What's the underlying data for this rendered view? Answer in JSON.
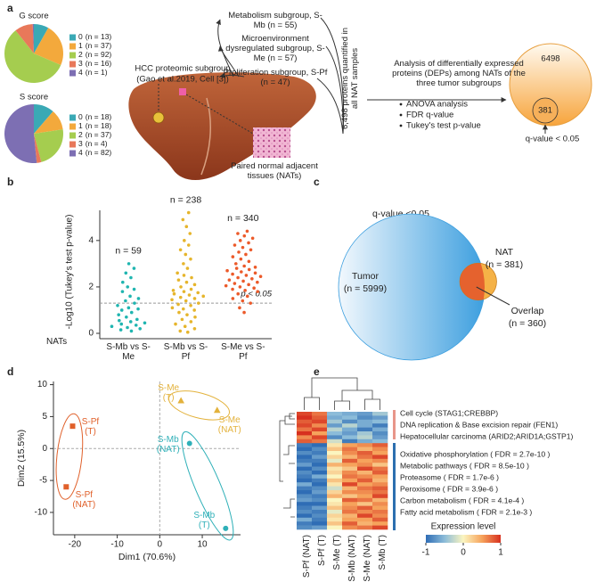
{
  "panel_labels": [
    "a",
    "b",
    "c",
    "d",
    "e"
  ],
  "diagram": {
    "source_title": "HCC proteomic subgroup",
    "source_ref": "(Gao et al.2019, Cell [3])",
    "subgroups": [
      "Metabolism subgroup, S-Mb (n = 55)",
      "Microenvironment dysregulated subgroup, S-Me (n = 57)",
      "Proliferation subgroup, S-Pf (n = 47)"
    ],
    "nat_label": "Paired normal adjacent tissues (NATs)",
    "quantified": "6,498 proteins quantified in all NAT samples",
    "analysis": "Analysis of differentially expressed proteins (DEPs) among NATs of the three tumor subgroups",
    "methods": [
      "ANOVA analysis",
      "FDR q-value",
      "Tukey's test p-value"
    ],
    "venn": {
      "total": "6498",
      "significant": "381",
      "label": "q-value < 0.05"
    }
  },
  "chart_data": [
    {
      "type": "pie",
      "title": "G score",
      "categories": [
        "0",
        "1",
        "2",
        "3",
        "4"
      ],
      "values": [
        13,
        37,
        92,
        16,
        1
      ],
      "value_labels": [
        "(n = 13)",
        "(n = 37)",
        "(n = 92)",
        "(n = 16)",
        "(n = 1)"
      ],
      "colors": [
        "#3aa9b5",
        "#f3a93c",
        "#a5cd4f",
        "#e8785a",
        "#7d6fb3"
      ]
    },
    {
      "type": "pie",
      "title": "S score",
      "categories": [
        "0",
        "1",
        "2",
        "3",
        "4"
      ],
      "values": [
        18,
        18,
        37,
        4,
        82
      ],
      "value_labels": [
        "(n = 18)",
        "(n = 18)",
        "(n = 37)",
        "(n = 4)",
        "(n = 82)"
      ],
      "colors": [
        "#3aa9b5",
        "#f3a93c",
        "#a5cd4f",
        "#e8785a",
        "#7d6fb3"
      ]
    },
    {
      "type": "strip",
      "ylabel": "-Log10 (Tukey's test p-value)",
      "category_axis_title": "NATs",
      "categories": [
        "S-Mb vs S-Me",
        "S-Mb vs S-Pf",
        "S-Me vs S-Pf"
      ],
      "annotations": [
        "n = 59",
        "n = 238",
        "n = 340"
      ],
      "colors": [
        "#1fb5b0",
        "#e6b52c",
        "#ec5a2a"
      ],
      "ylim": [
        0,
        5.3
      ],
      "yticks": [
        0,
        2,
        4
      ],
      "threshold": 1.3,
      "threshold_label": "p < 0.05",
      "values": [
        [
          0.1,
          0.15,
          0.2,
          0.25,
          0.3,
          0.35,
          0.4,
          0.45,
          0.5,
          0.55,
          0.6,
          0.7,
          0.8,
          0.9,
          1.0,
          1.05,
          1.1,
          1.2,
          1.3,
          1.4,
          1.5,
          1.6,
          1.8,
          1.9,
          2.0,
          2.2,
          2.4,
          2.6,
          2.8,
          3.0
        ],
        [
          0.05,
          0.1,
          0.2,
          0.3,
          0.4,
          0.5,
          0.6,
          0.7,
          0.8,
          0.9,
          1.0,
          1.05,
          1.1,
          1.2,
          1.25,
          1.3,
          1.4,
          1.45,
          1.5,
          1.55,
          1.6,
          1.65,
          1.7,
          1.75,
          1.8,
          1.85,
          1.9,
          2.0,
          2.1,
          2.2,
          2.3,
          2.4,
          2.5,
          2.6,
          2.8,
          3.0,
          3.2,
          3.4,
          3.6,
          3.8,
          4.0,
          4.3,
          4.6,
          4.9,
          5.2
        ],
        [
          0.9,
          1.1,
          1.3,
          1.4,
          1.5,
          1.6,
          1.7,
          1.8,
          1.85,
          1.9,
          1.95,
          2.0,
          2.05,
          2.1,
          2.15,
          2.2,
          2.25,
          2.3,
          2.35,
          2.4,
          2.45,
          2.5,
          2.55,
          2.6,
          2.65,
          2.7,
          2.75,
          2.8,
          2.85,
          2.9,
          3.0,
          3.1,
          3.2,
          3.3,
          3.4,
          3.5,
          3.6,
          3.7,
          3.8,
          3.9,
          4.0,
          4.1,
          4.2,
          4.3,
          4.4
        ]
      ]
    },
    {
      "type": "venn",
      "title": "q-value <0.05",
      "sets": [
        {
          "name": "Tumor",
          "value": 5999,
          "value_label": "(n = 5999)",
          "color": "#3d9fdf"
        },
        {
          "name": "NAT",
          "value": 381,
          "value_label": "(n = 381)",
          "color": "#f5b247"
        }
      ],
      "overlap": {
        "name": "Overlap",
        "value": 360,
        "value_label": "(n = 360)",
        "color": "#e2542a"
      }
    },
    {
      "type": "scatter",
      "xlabel": "Dim1 (70.6%)",
      "ylabel": "Dim2 (15.5%)",
      "xlim": [
        -25,
        19
      ],
      "ylim": [
        -13.5,
        10.5
      ],
      "xticks": [
        -20,
        -10,
        0,
        10
      ],
      "yticks": [
        -10,
        -5,
        0,
        5,
        10
      ],
      "series": [
        {
          "color": "#e0602a",
          "marker": "square",
          "x": [
            -20.5,
            -22
          ],
          "y": [
            3.5,
            -6
          ],
          "labels": [
            "S-Pf (T)",
            "S-Pf (NAT)"
          ]
        },
        {
          "color": "#e3b23c",
          "marker": "triangle",
          "x": [
            5,
            13.5
          ],
          "y": [
            7.5,
            6
          ],
          "labels": [
            "S-Me (T)",
            "S-Me (NAT)"
          ]
        },
        {
          "color": "#2fb0b8",
          "marker": "circle",
          "x": [
            7,
            15.5
          ],
          "y": [
            0.8,
            -12.5
          ],
          "labels": [
            "S-Mb (NAT)",
            "S-Mb (T)"
          ]
        }
      ]
    },
    {
      "type": "heatmap",
      "columns": [
        "S-Pf (NAT)",
        "S-Pf (T)",
        "S-Me (T)",
        "S-Mb (NAT)",
        "S-Me (NAT)",
        "S-Mb (T)"
      ],
      "colorbar": {
        "title": "Expression level",
        "lim": [
          -1,
          1
        ],
        "ticks": [
          -1,
          0,
          1
        ]
      },
      "annotations": [
        {
          "color": "#e8968a",
          "items": [
            "Cell cycle (STAG1;CREBBP)",
            "DNA replication & Base excision repair (FEN1)",
            "Hepatocellular carcinoma (ARID2;ARID1A;GSTP1)"
          ]
        },
        {
          "color": "#2d6faf",
          "items": [
            "Oxidative phosphorylation ( FDR = 2.7e-10 )",
            "Metabolic pathways ( FDR = 8.5e-10 )",
            "Proteasome ( FDR = 1.7e-6 )",
            "Peroxisome ( FDR = 3.9e-6 )",
            "Carbon metabolism ( FDR = 4.1e-4 )",
            "Fatty acid metabolism ( FDR = 2.1e-3 )"
          ]
        }
      ],
      "values": [
        [
          0.9,
          0.7,
          -0.5,
          -0.6,
          -0.7,
          -0.4
        ],
        [
          1.0,
          0.8,
          -0.6,
          -0.5,
          -0.8,
          -0.7
        ],
        [
          0.8,
          0.9,
          -0.4,
          -0.8,
          -0.6,
          -0.5
        ],
        [
          0.9,
          0.6,
          -0.7,
          -0.3,
          -0.6,
          -0.9
        ],
        [
          0.7,
          0.9,
          -0.3,
          -0.6,
          -0.9,
          -0.6
        ],
        [
          1.0,
          0.5,
          -0.5,
          -0.7,
          -0.4,
          -0.8
        ],
        [
          0.6,
          0.9,
          -0.8,
          -0.5,
          -0.3,
          -0.7
        ],
        [
          0.8,
          0.7,
          -0.2,
          -0.9,
          -0.6,
          -0.5
        ],
        [
          -0.9,
          -1.0,
          0.1,
          0.5,
          0.6,
          0.8
        ],
        [
          -1.0,
          -0.8,
          0.3,
          0.7,
          0.4,
          0.6
        ],
        [
          -0.8,
          -0.9,
          0.0,
          0.6,
          0.8,
          0.5
        ],
        [
          -1.0,
          -0.7,
          0.2,
          0.4,
          0.7,
          0.9
        ],
        [
          -0.9,
          -0.9,
          -0.1,
          0.8,
          0.5,
          0.6
        ],
        [
          -0.7,
          -1.0,
          0.4,
          0.5,
          0.6,
          0.3
        ],
        [
          -1.0,
          -0.8,
          0.1,
          0.3,
          0.9,
          0.7
        ],
        [
          -0.8,
          -1.0,
          0.2,
          0.6,
          0.4,
          0.8
        ],
        [
          -0.9,
          -0.6,
          0.0,
          0.7,
          0.6,
          0.5
        ],
        [
          -1.0,
          -0.9,
          0.3,
          0.5,
          0.8,
          0.4
        ],
        [
          -0.6,
          -1.0,
          0.1,
          0.9,
          0.5,
          0.6
        ],
        [
          -0.9,
          -0.8,
          -0.2,
          0.4,
          0.7,
          0.8
        ],
        [
          -1.0,
          -0.7,
          0.2,
          0.6,
          0.6,
          0.7
        ],
        [
          -0.8,
          -0.9,
          0.4,
          0.3,
          0.5,
          0.9
        ],
        [
          -0.7,
          -0.8,
          0.0,
          0.8,
          0.7,
          0.4
        ],
        [
          -1.0,
          -1.0,
          0.1,
          0.5,
          0.3,
          0.6
        ],
        [
          -0.9,
          -0.7,
          0.3,
          0.6,
          0.8,
          0.5
        ],
        [
          -0.8,
          -0.9,
          -0.1,
          0.7,
          0.6,
          0.7
        ],
        [
          -1.0,
          -0.8,
          0.2,
          0.4,
          0.9,
          0.6
        ],
        [
          -0.6,
          -0.9,
          0.1,
          0.5,
          0.5,
          0.8
        ],
        [
          -0.9,
          -1.0,
          0.3,
          0.8,
          0.4,
          0.5
        ],
        [
          -0.8,
          -0.7,
          0.0,
          0.6,
          0.7,
          0.9
        ]
      ]
    }
  ]
}
